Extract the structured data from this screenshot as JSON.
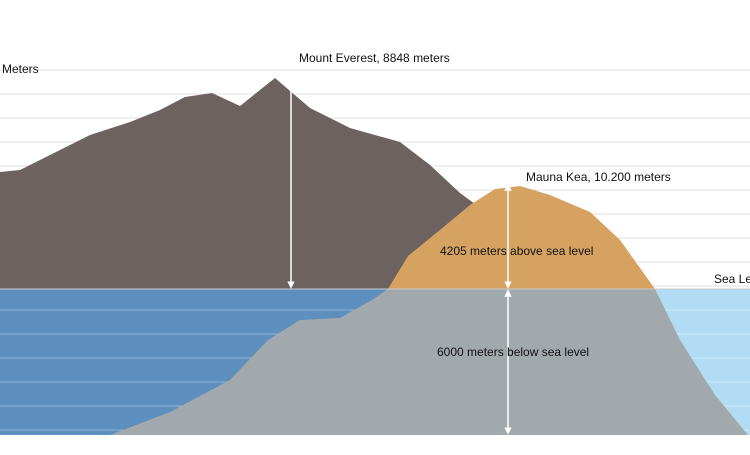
{
  "axis_label": "Meters",
  "everest": {
    "label": "Mount Everest, 8848 meters"
  },
  "mauna_kea": {
    "label": "Mauna Kea, 10.200 meters",
    "above_label": "4205 meters above sea level",
    "below_label": "6000 meters below sea level"
  },
  "sea_level_label": "Sea Le"
}
